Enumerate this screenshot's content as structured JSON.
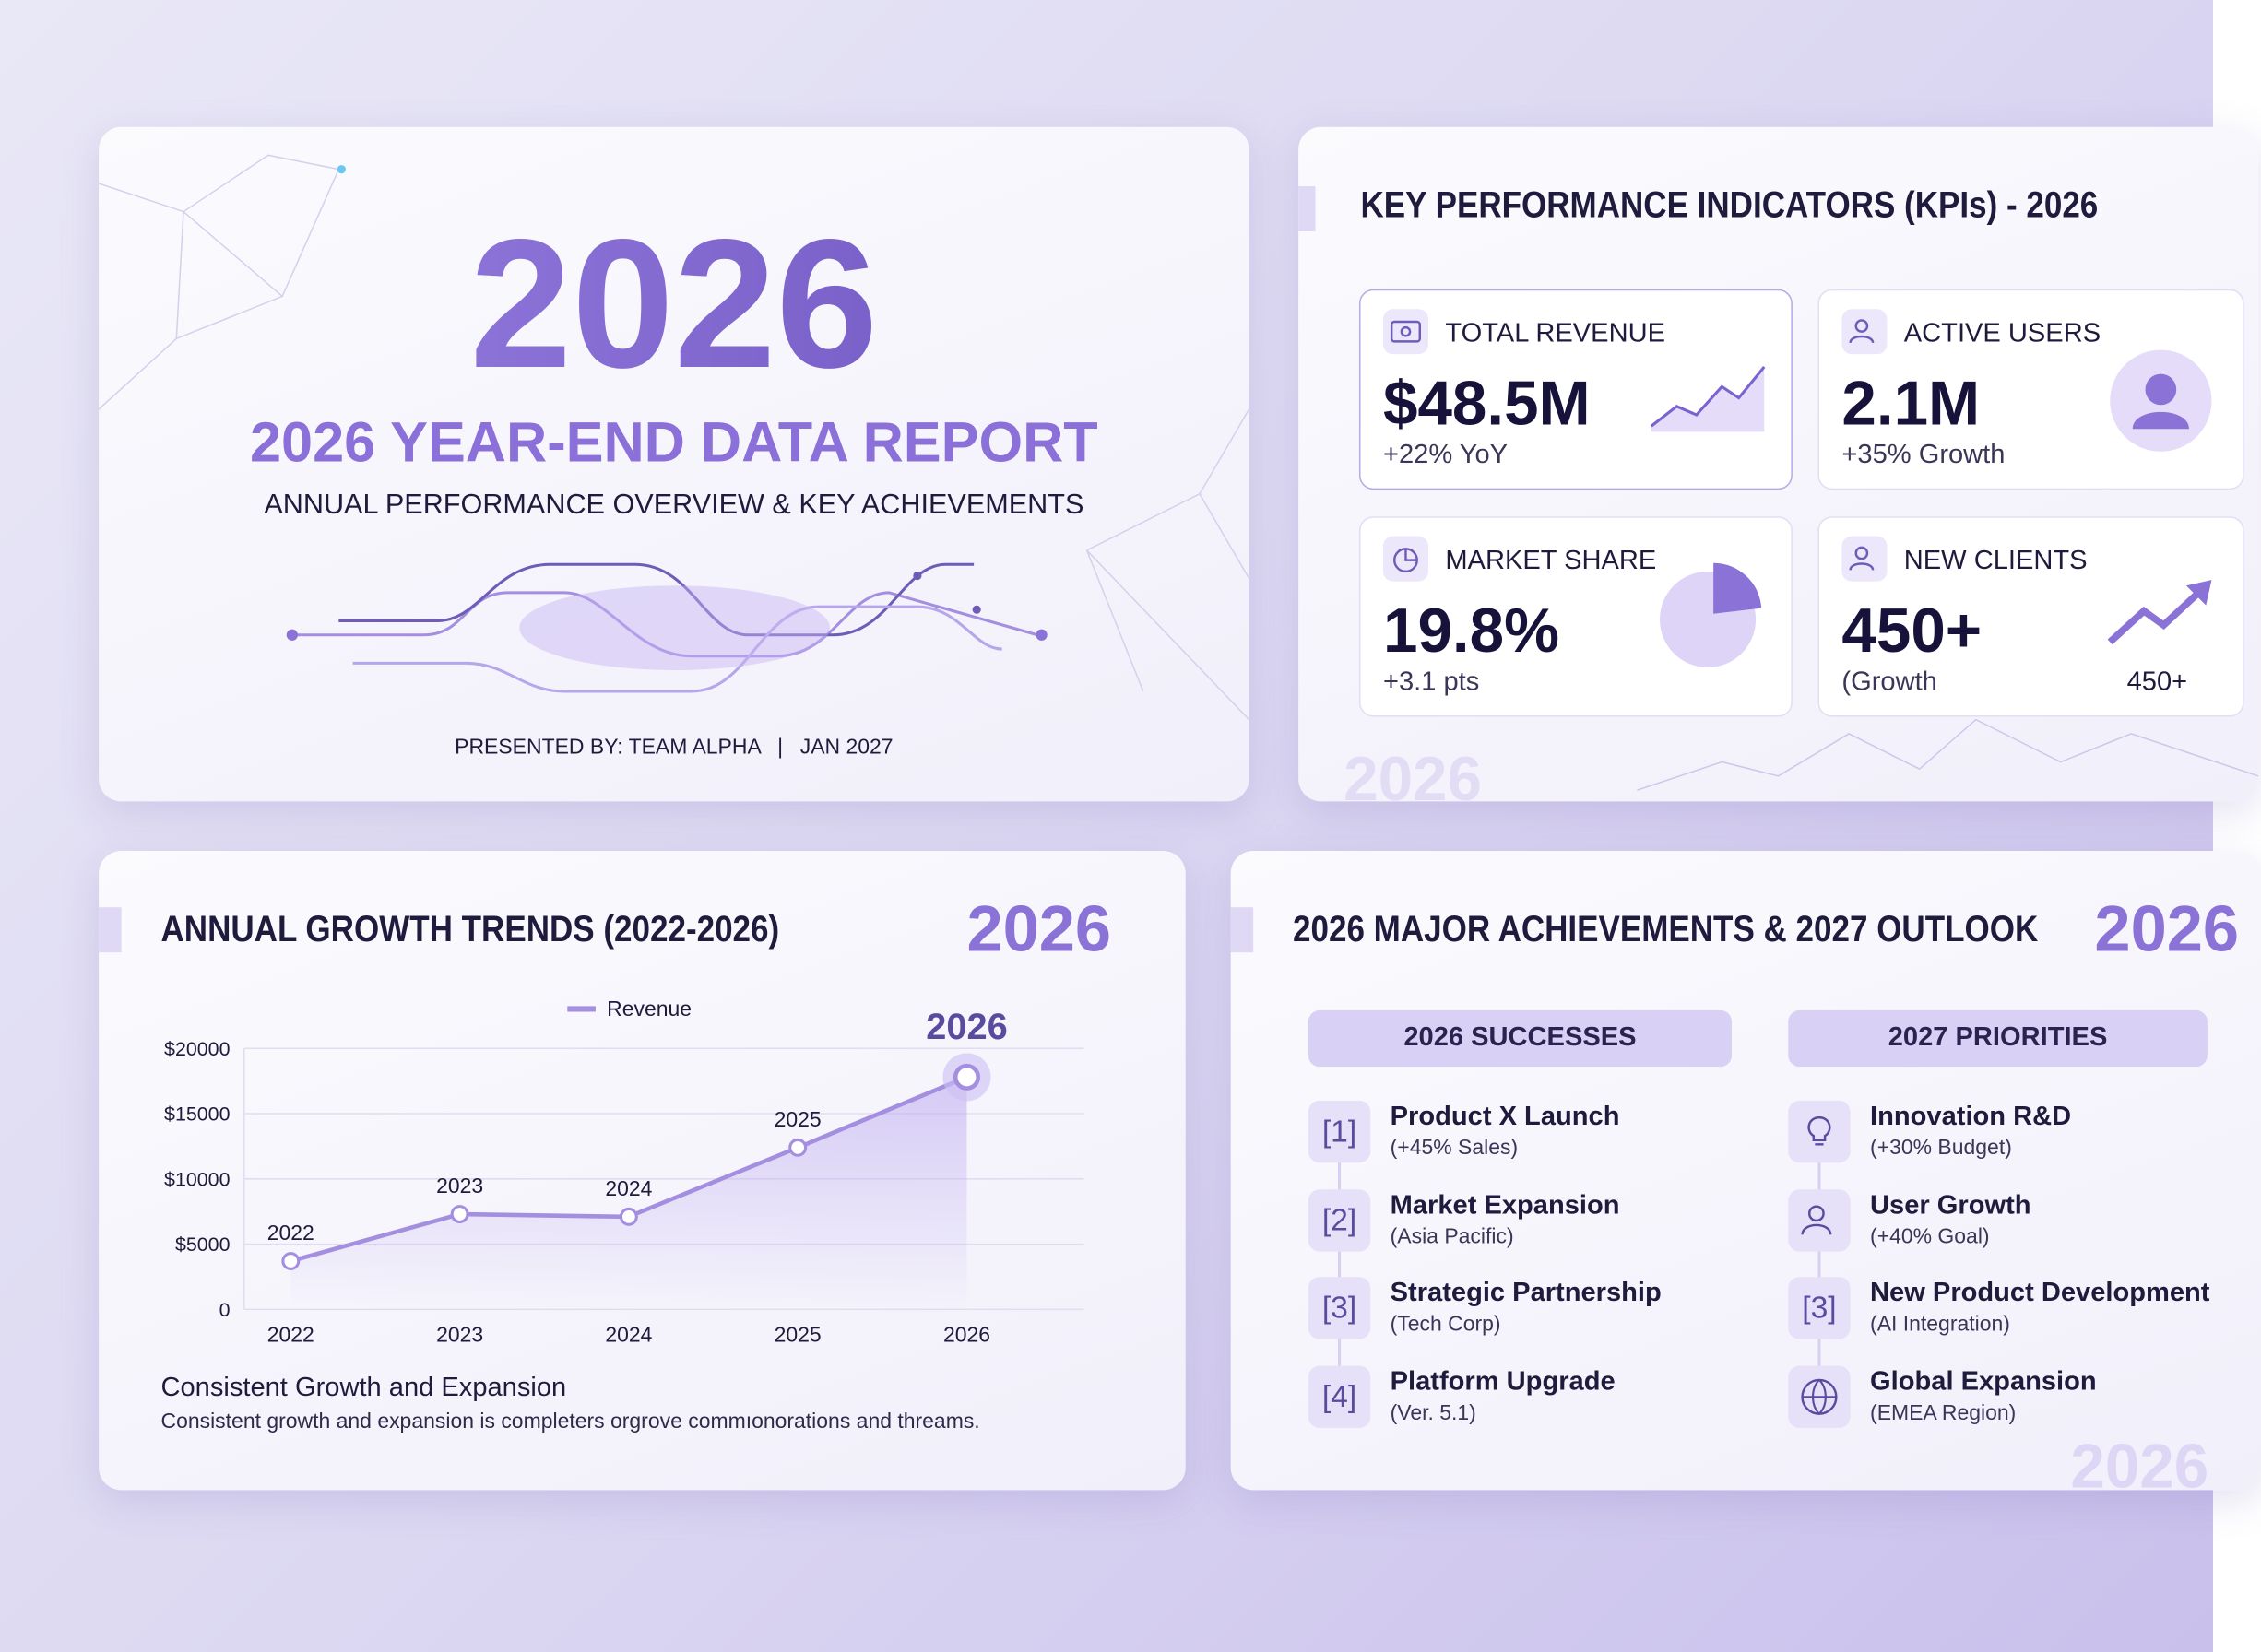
{
  "title_slide": {
    "year": "2026",
    "title": "2026 YEAR-END DATA REPORT",
    "subtitle": "ANNUAL PERFORMANCE OVERVIEW & KEY ACHIEVEMENTS",
    "presenter": "PRESENTED BY: TEAM ALPHA",
    "date": "JAN 2027"
  },
  "kpi_slide": {
    "title": "KEY PERFORMANCE INDICATORS (KPIs) - 2026",
    "watermark": "2026",
    "cards": [
      {
        "label": "TOTAL REVENUE",
        "value": "$48.5M",
        "sub": "+22% YoY"
      },
      {
        "label": "ACTIVE USERS",
        "value": "2.1M",
        "sub": "+35% Growth"
      },
      {
        "label": "MARKET SHARE",
        "value": "19.8%",
        "sub": "+3.1 pts"
      },
      {
        "label": "NEW CLIENTS",
        "value": "450+",
        "sub": "(Growth",
        "note": "450+"
      }
    ]
  },
  "growth_slide": {
    "title": "ANNUAL GROWTH TRENDS (2022-2026)",
    "watermark": "2026",
    "footer_title": "Consistent Growth and Expansion",
    "footer_text": "Consistent growth and expansion is completers orgrove commıonorations and threams."
  },
  "chart_data": {
    "type": "line",
    "categories": [
      "2022",
      "2023",
      "2024",
      "2025",
      "2026"
    ],
    "series": [
      {
        "name": "Revenue",
        "color": "#a48ee0",
        "values": [
          3700,
          7300,
          7100,
          12400,
          17800
        ]
      }
    ],
    "ylim": [
      0,
      20000
    ],
    "yticks": [
      0,
      {
        "value": 5000,
        "label": "$5000"
      },
      {
        "value": 10000,
        "label": "$10000"
      },
      {
        "value": 15000,
        "label": "$15000"
      },
      {
        "value": 20000,
        "label": "$20000"
      }
    ],
    "grid": true,
    "legend": "top"
  },
  "achievements_slide": {
    "title": "2026 MAJOR ACHIEVEMENTS & 2027 OUTLOOK",
    "watermark": "2026",
    "watermark_bottom": "2026",
    "columns": [
      {
        "heading": "2026 SUCCESSES",
        "items": [
          {
            "marker": "[1]",
            "title": "Product X Launch",
            "detail": "(+45% Sales)"
          },
          {
            "marker": "[2]",
            "title": "Market Expansion",
            "detail": "(Asia Pacific)"
          },
          {
            "marker": "[3]",
            "title": "Strategic Partnership",
            "detail": "(Tech Corp)"
          },
          {
            "marker": "[4]",
            "title": "Platform Upgrade",
            "detail": "(Ver. 5.1)"
          }
        ]
      },
      {
        "heading": "2027 PRIORITIES",
        "items": [
          {
            "title": "Innovation R&D",
            "detail": "(+30% Budget)"
          },
          {
            "title": "User Growth",
            "detail": "(+40% Goal)"
          },
          {
            "marker": "[3]",
            "title": "New Product Development",
            "detail": "(AI Integration)"
          },
          {
            "title": "Global Expansion",
            "detail": "(EMEA Region)"
          }
        ]
      }
    ]
  }
}
